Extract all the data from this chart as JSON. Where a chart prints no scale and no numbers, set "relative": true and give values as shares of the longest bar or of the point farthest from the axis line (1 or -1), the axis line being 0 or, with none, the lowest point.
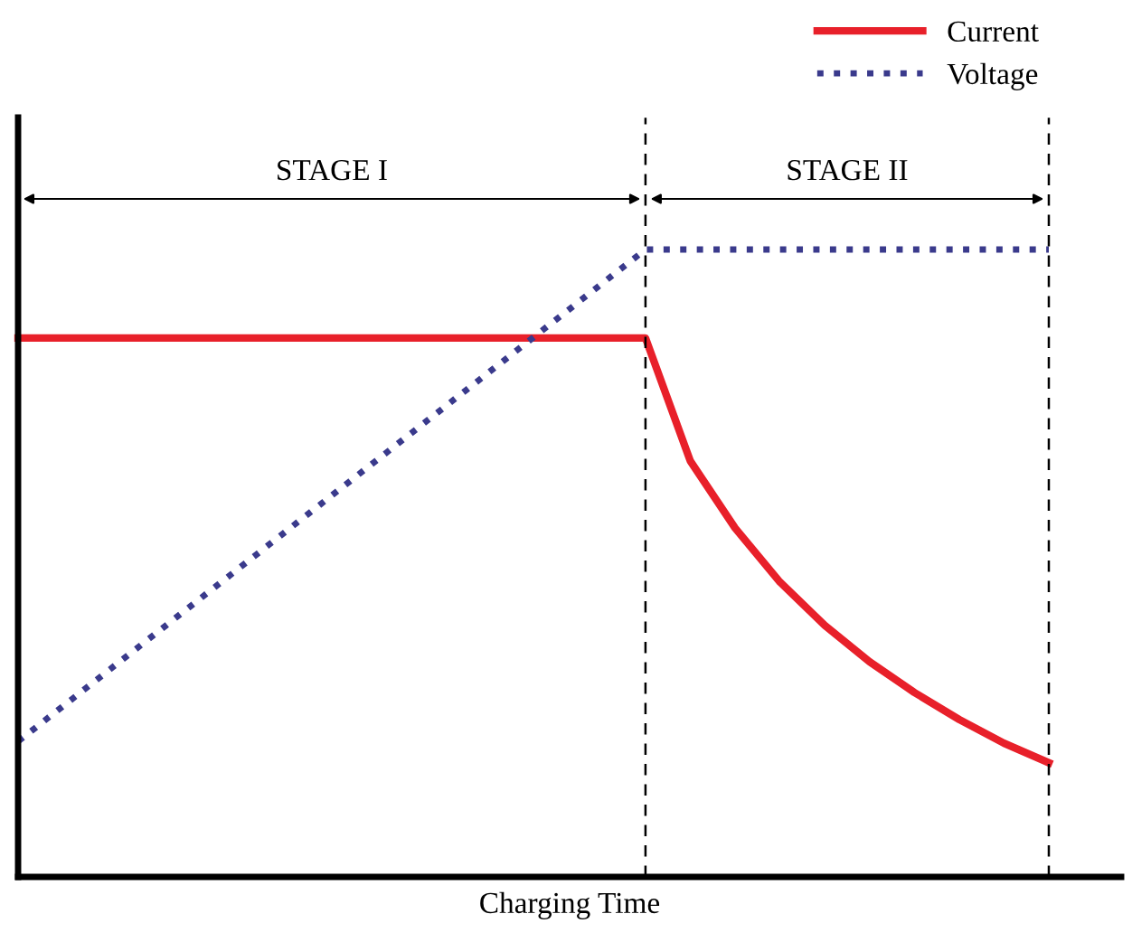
{
  "chart_data": {
    "type": "line",
    "relative": true,
    "xlabel": "Charging Time",
    "categories": [
      null,
      null,
      null,
      null,
      null,
      null,
      null,
      null,
      null,
      null,
      null,
      null,
      null,
      null,
      null,
      null,
      null,
      null,
      null,
      null,
      null,
      null,
      null,
      null
    ],
    "series": [
      {
        "name": "Current",
        "color": "#e8202a",
        "line_style": "solid",
        "values": [
          0.859,
          0.859,
          0.859,
          0.859,
          0.859,
          0.859,
          0.859,
          0.859,
          0.859,
          0.859,
          0.859,
          0.859,
          0.859,
          0.859,
          0.859,
          0.663,
          0.556,
          0.47,
          0.401,
          0.343,
          0.294,
          0.251,
          0.213,
          0.182
        ]
      },
      {
        "name": "Voltage",
        "color": "#3a3a8c",
        "line_style": "dotted",
        "values": [
          0.216,
          0.272,
          0.328,
          0.384,
          0.44,
          0.496,
          0.552,
          0.608,
          0.664,
          0.72,
          0.776,
          0.832,
          0.888,
          0.944,
          1.0,
          1.0,
          1.0,
          1.0,
          1.0,
          1.0,
          1.0,
          1.0,
          1.0,
          1.0
        ]
      }
    ],
    "annotations": [
      "STAGE I",
      "STAGE II"
    ],
    "legend": "top right",
    "marker": "none"
  }
}
